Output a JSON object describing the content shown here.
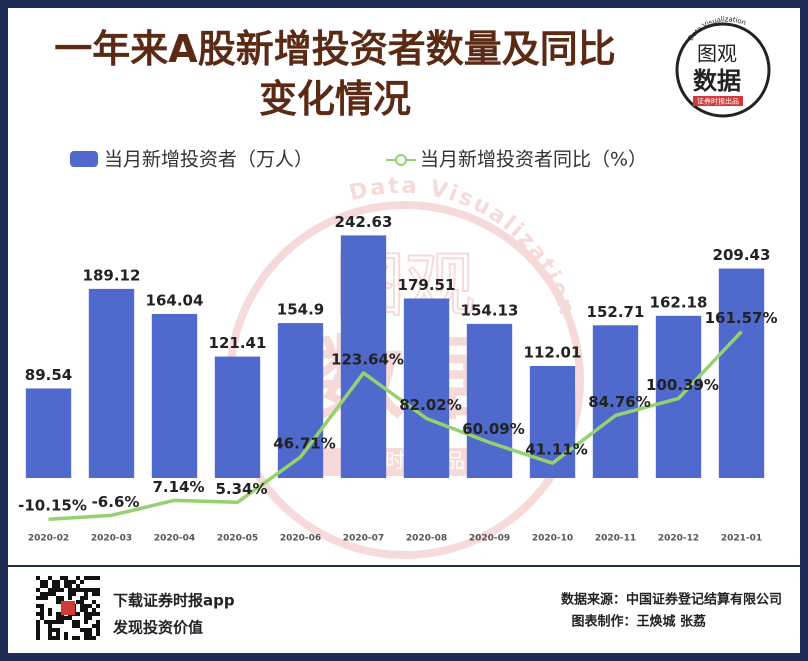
{
  "chart_data": {
    "type": "bar",
    "title": "一年来A股新增投资者数量及同比变化情况",
    "categories": [
      "2020-02",
      "2020-03",
      "2020-04",
      "2020-05",
      "2020-06",
      "2020-07",
      "2020-08",
      "2020-09",
      "2020-10",
      "2020-11",
      "2020-12",
      "2021-01"
    ],
    "series": [
      {
        "name": "当月新增投资者（万人）",
        "type": "bar",
        "color": "#5069cc",
        "values": [
          89.54,
          189.12,
          164.04,
          121.41,
          154.9,
          242.63,
          179.51,
          154.13,
          112.01,
          152.71,
          162.18,
          209.43
        ]
      },
      {
        "name": "当月新增投资者同比（%）",
        "type": "line",
        "axis": "y2",
        "color": "#95d16f",
        "values": [
          -10.15,
          -6.6,
          7.14,
          5.34,
          46.71,
          123.64,
          82.02,
          60.09,
          41.11,
          84.76,
          100.39,
          161.57
        ],
        "value_labels": [
          "-10.15%",
          "-6.6%",
          "7.14%",
          "5.34%",
          "46.71%",
          "123.64%",
          "82.02%",
          "60.09%",
          "41.11%",
          "84.76%",
          "100.39%",
          "161.57%"
        ]
      }
    ],
    "ylim": [
      -52,
      300
    ],
    "y2lim": [
      -20,
      302
    ],
    "grid": false,
    "legend": "top"
  },
  "logo": {
    "line1": "图观",
    "line2": "数据",
    "arc": "Data Visualization",
    "badge": "证券时报出品"
  },
  "footer": {
    "app": "下载证券时报app",
    "slogan": "发现投资价值",
    "source": "数据来源：中国证券登记结算有限公司",
    "credit": "图表制作：王焕城 张荔"
  }
}
